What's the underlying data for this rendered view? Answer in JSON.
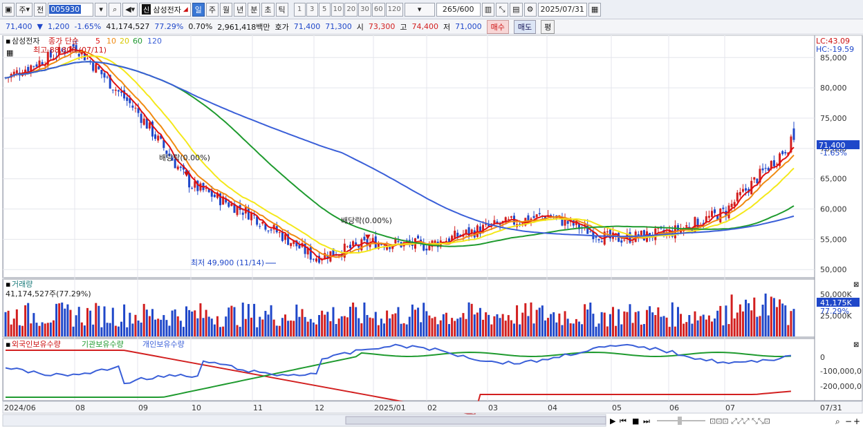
{
  "toolbar": {
    "period_main": "주",
    "stock_type": "전",
    "code": "005930",
    "stock_name": "삼성전자",
    "shin_label": "신",
    "intervals": [
      {
        "label": "일",
        "selected": true
      },
      {
        "label": "주",
        "selected": false
      },
      {
        "label": "월",
        "selected": false
      },
      {
        "label": "년",
        "selected": false
      },
      {
        "label": "분",
        "selected": false
      },
      {
        "label": "초",
        "selected": false
      },
      {
        "label": "틱",
        "selected": false
      }
    ],
    "quick_periods": [
      "1",
      "3",
      "5",
      "10",
      "20",
      "30",
      "60",
      "120"
    ],
    "count_shown": "265",
    "count_total": "/600",
    "date": "2025/07/31"
  },
  "quote": {
    "price": "71,400",
    "change": "1,200",
    "change_pct": "-1.65%",
    "volume": "41,174,527",
    "vol_ratio": "77.29%",
    "turnover_rate": "0.70%",
    "trade_value": "2,961,418백만",
    "hoga_label": "호가",
    "ask": "71,400",
    "bid": "71,300",
    "open_label": "시",
    "open": "73,300",
    "high_label": "고",
    "high": "74,400",
    "low_label": "저",
    "low": "71,000",
    "buy_label": "매수",
    "sell_label": "매도",
    "eval_label": "평"
  },
  "colors": {
    "up": "#d21f1f",
    "down": "#1f47c9",
    "ma5": "#e01010",
    "ma10": "#f08a10",
    "ma20": "#f4e81a",
    "ma60": "#1e9a2e",
    "ma120": "#3a5fd8"
  },
  "price_pane": {
    "legend_name": "삼성전자",
    "legend_type": "종가 단순",
    "ma_labels": [
      "5",
      "10",
      "20",
      "60",
      "120"
    ],
    "high_label": "최고 88,800 (07/11)",
    "low_label": "최저 49,900 (11/14)",
    "dividend_label_1": "배당락(0.00%)",
    "dividend_label_2": "배당락(0.00%)",
    "lc_label": "LC:43.09",
    "hc_label": "HC:-19.59",
    "last_price_tag": "71,400",
    "last_pct_tag": "-1.65%",
    "y_ticks": [
      "85,000",
      "80,000",
      "75,000",
      "70,000",
      "65,000",
      "60,000",
      "55,000",
      "50,000"
    ]
  },
  "volume_pane": {
    "title": "거래량",
    "info": "41,174,527주(77.29%)",
    "y_ticks": [
      "50,000K",
      "25,000K"
    ],
    "last_tag": "41,175K",
    "last_pct": "77.29%"
  },
  "holding_pane": {
    "legend": [
      "외국인보유수량",
      "기관보유수량",
      "개인보유수량"
    ],
    "y_ticks": [
      "0",
      "-100,000,0",
      "-200,000,0"
    ]
  },
  "x_axis": {
    "labels": [
      "2024/06",
      "08",
      "09",
      "10",
      "11",
      "12",
      "2025/01",
      "02",
      "03",
      "04",
      "05",
      "06",
      "07"
    ],
    "right_date": "07/31"
  },
  "chart_data": {
    "type": "candlestick",
    "symbol": "삼성전자 (005930)",
    "period": "daily",
    "y_range": [
      49000,
      88000
    ],
    "keypoints_close": [
      {
        "month": "2024/06",
        "close": 81500
      },
      {
        "month": "2024/07",
        "close": 87000
      },
      {
        "month": "2024/08",
        "close": 76000
      },
      {
        "month": "2024/09",
        "close": 64000
      },
      {
        "month": "2024/10",
        "close": 59000
      },
      {
        "month": "2024/11",
        "close": 52000
      },
      {
        "month": "2024/12",
        "close": 54500
      },
      {
        "month": "2025/01",
        "close": 54000
      },
      {
        "month": "2025/02",
        "close": 57000
      },
      {
        "month": "2025/03",
        "close": 59000
      },
      {
        "month": "2025/04",
        "close": 55000
      },
      {
        "month": "2025/05",
        "close": 56000
      },
      {
        "month": "2025/06",
        "close": 59500
      },
      {
        "month": "2025/07",
        "close": 71400
      }
    ],
    "high": 88800,
    "low": 49900,
    "last": {
      "open": 73300,
      "high": 74400,
      "low": 71000,
      "close": 71400,
      "volume": 41174527
    }
  }
}
